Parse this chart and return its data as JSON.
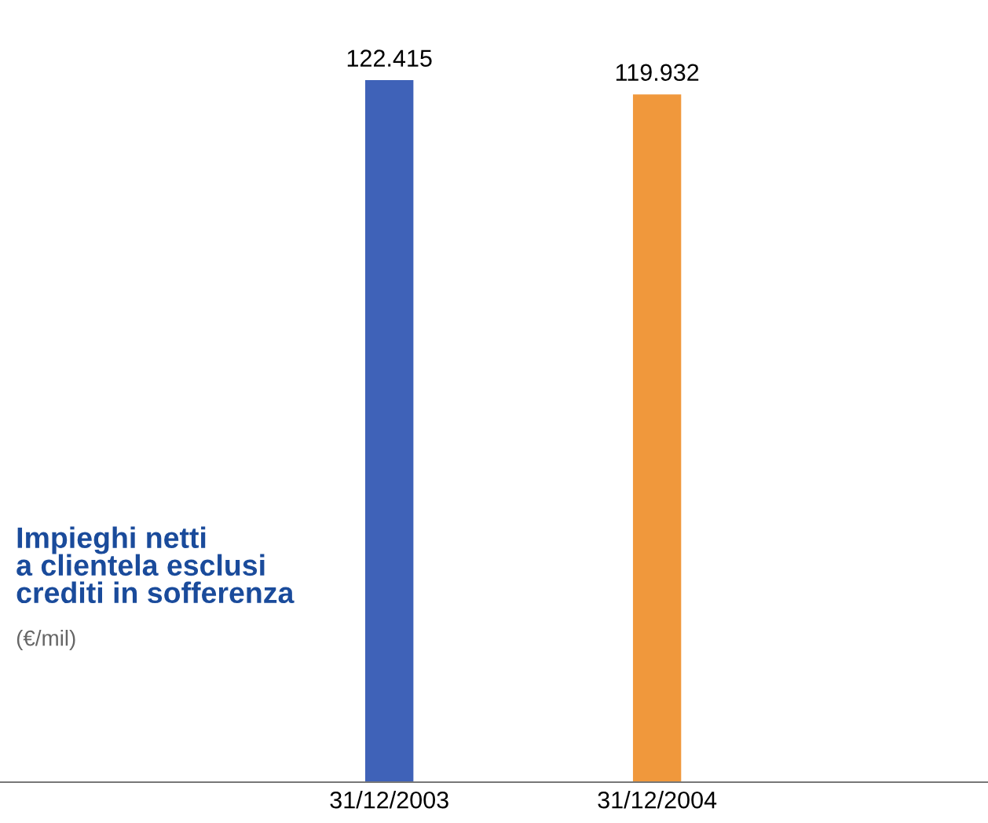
{
  "chart_data": {
    "type": "bar",
    "title": "Impieghi netti\na clientela esclusi\ncrediti in sofferenza",
    "annotations": [
      "(€/mil)"
    ],
    "categories": [
      "31/12/2003",
      "31/12/2004"
    ],
    "values": [
      122415,
      119932
    ],
    "colors": [
      "#3f62b8",
      "#f0983c"
    ],
    "value_labels": [
      "122.415",
      "119.932"
    ],
    "grid": false,
    "legend": false
  }
}
